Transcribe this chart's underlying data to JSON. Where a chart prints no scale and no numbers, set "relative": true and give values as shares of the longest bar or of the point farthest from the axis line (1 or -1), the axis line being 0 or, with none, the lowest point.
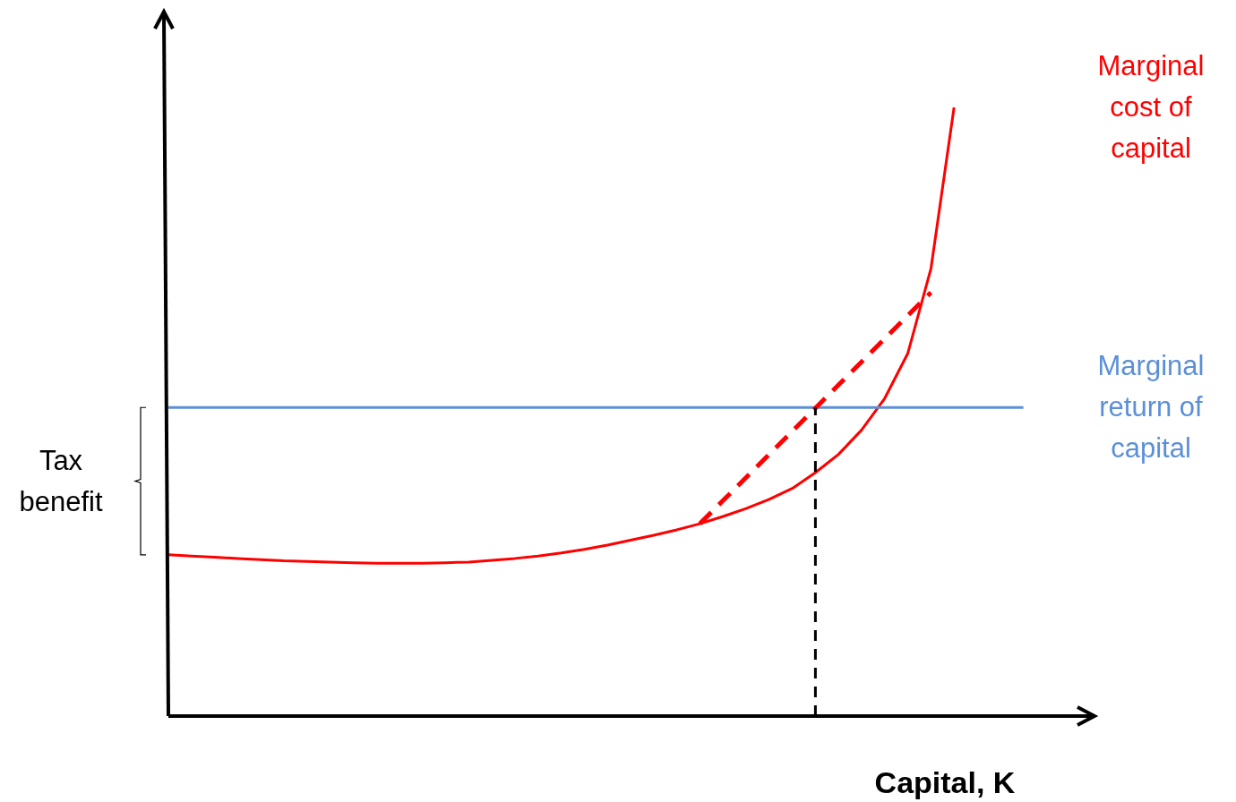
{
  "chart_data": {
    "type": "line",
    "relative": true,
    "xlabel": "Capital, K",
    "annotations": [
      "Tax benefit"
    ],
    "legend": false,
    "categories": [
      null,
      null,
      null,
      null,
      null,
      null,
      null,
      null,
      null,
      null,
      null,
      null,
      null,
      null,
      null,
      null,
      null,
      null,
      null,
      null,
      null,
      null,
      null,
      null,
      null,
      null,
      null,
      null,
      null,
      null,
      null,
      null,
      null,
      null,
      null,
      null,
      null,
      null,
      null,
      null,
      null
    ],
    "series": [
      {
        "name": "Marginal cost of capital",
        "color": "#ff0000",
        "values": [
          0.265,
          0.263,
          0.261,
          0.259,
          0.257,
          0.255,
          0.254,
          0.253,
          0.252,
          0.251,
          0.251,
          0.251,
          0.252,
          0.253,
          0.256,
          0.259,
          0.263,
          0.268,
          0.274,
          0.281,
          0.289,
          0.297,
          0.306,
          0.316,
          0.328,
          0.341,
          0.356,
          0.374,
          0.4,
          0.43,
          0.47,
          0.522,
          0.596,
          0.735,
          1,
          null,
          null,
          null,
          null,
          null,
          null
        ]
      },
      {
        "name": "Marginal return of capital",
        "color": "#5b8fd6",
        "values": [
          0.507,
          0.507,
          0.507,
          0.507,
          0.507,
          0.507,
          0.507,
          0.507,
          0.507,
          0.507,
          0.507,
          0.507,
          0.507,
          0.507,
          0.507,
          0.507,
          0.507,
          0.507,
          0.507,
          0.507,
          0.507,
          0.507,
          0.507,
          0.507,
          0.507,
          0.507,
          0.507,
          0.507,
          0.507,
          0.507,
          0.507,
          0.507,
          0.507,
          0.507,
          0.507,
          0.507,
          0.507,
          0.507,
          null,
          null,
          null
        ]
      },
      {
        "color": "#ff0000",
        "line_style": "dashed",
        "values": [
          null,
          null,
          null,
          null,
          null,
          null,
          null,
          null,
          null,
          null,
          null,
          null,
          null,
          null,
          null,
          null,
          null,
          null,
          null,
          null,
          null,
          null,
          null,
          0.316,
          0.354,
          0.392,
          0.43,
          0.468,
          0.506,
          0.544,
          0.582,
          0.62,
          0.658,
          0.696,
          null,
          null,
          null,
          null,
          null,
          null,
          null
        ]
      }
    ]
  }
}
